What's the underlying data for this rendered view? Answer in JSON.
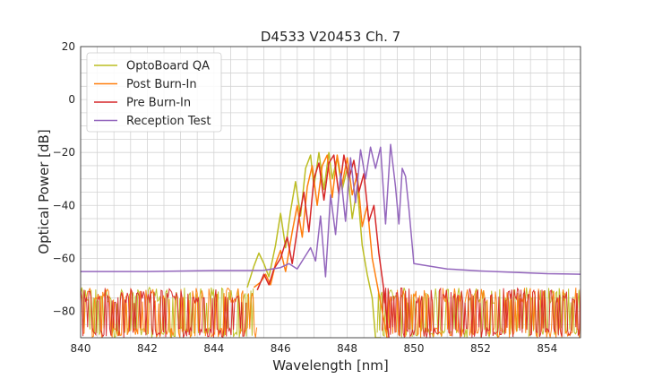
{
  "chart_data": {
    "type": "line",
    "title": "D4533 V20453 Ch. 7",
    "xlabel": "Wavelength [nm]",
    "ylabel": "Optical Power [dB]",
    "xlim": [
      840,
      855
    ],
    "ylim": [
      -90,
      20
    ],
    "xticks": [
      840,
      842,
      844,
      846,
      848,
      850,
      852,
      854
    ],
    "yticks": [
      20,
      0,
      -20,
      -40,
      -60,
      -80
    ],
    "xtick_labels": [
      "840",
      "842",
      "844",
      "846",
      "848",
      "850",
      "852",
      "854"
    ],
    "ytick_labels": [
      "20",
      "0",
      "−20",
      "−40",
      "−60",
      "−80"
    ],
    "grid": true,
    "legend_position": "top-left",
    "noise_floor": {
      "top": -71,
      "bottom": -90
    },
    "series": [
      {
        "name": "OptoBoard QA",
        "color": "#bcbd22",
        "x": [
          845.0,
          845.2,
          845.35,
          845.5,
          845.65,
          845.85,
          846.0,
          846.15,
          846.3,
          846.45,
          846.6,
          846.75,
          846.9,
          847.0,
          847.15,
          847.3,
          847.45,
          847.55,
          847.7,
          847.85,
          848.0,
          848.15,
          848.3,
          848.45,
          848.6,
          848.75,
          848.85,
          849.0
        ],
        "y": [
          -71,
          -63,
          -58,
          -62,
          -67,
          -55,
          -43,
          -56,
          -42,
          -31,
          -44,
          -26,
          -21,
          -33,
          -20,
          -34,
          -20,
          -30,
          -22,
          -34,
          -26,
          -45,
          -33,
          -55,
          -66,
          -75,
          -90,
          -90
        ]
      },
      {
        "name": "Post Burn-In",
        "color": "#ff7f0e",
        "x": [
          845.2,
          845.4,
          845.55,
          845.7,
          845.85,
          846.0,
          846.15,
          846.35,
          846.5,
          846.65,
          846.8,
          846.95,
          847.1,
          847.25,
          847.4,
          847.55,
          847.7,
          847.85,
          848.0,
          848.15,
          848.3,
          848.45,
          848.6,
          848.75,
          848.9,
          849.05,
          849.2
        ],
        "y": [
          -71,
          -69,
          -66,
          -70,
          -62,
          -57,
          -65,
          -50,
          -40,
          -52,
          -33,
          -25,
          -40,
          -25,
          -21,
          -37,
          -21,
          -32,
          -22,
          -36,
          -28,
          -48,
          -40,
          -60,
          -70,
          -80,
          -90
        ]
      },
      {
        "name": "Pre Burn-In",
        "color": "#d62728",
        "x": [
          845.3,
          845.5,
          845.65,
          845.8,
          846.0,
          846.2,
          846.35,
          846.55,
          846.7,
          846.85,
          847.0,
          847.15,
          847.3,
          847.45,
          847.6,
          847.75,
          847.9,
          848.05,
          848.2,
          848.35,
          848.5,
          848.65,
          848.8,
          848.95,
          849.1,
          849.25
        ],
        "y": [
          -72,
          -66,
          -70,
          -64,
          -60,
          -52,
          -62,
          -45,
          -35,
          -50,
          -30,
          -24,
          -38,
          -24,
          -21,
          -36,
          -21,
          -30,
          -23,
          -35,
          -28,
          -46,
          -40,
          -58,
          -72,
          -90
        ]
      },
      {
        "name": "Reception Test",
        "color": "#9467bd",
        "x": [
          840.0,
          842.0,
          844.0,
          845.0,
          845.5,
          846.0,
          846.25,
          846.5,
          846.7,
          846.9,
          847.05,
          847.2,
          847.35,
          847.5,
          847.65,
          847.8,
          847.95,
          848.1,
          848.25,
          848.4,
          848.55,
          848.7,
          848.85,
          849.0,
          849.15,
          849.3,
          849.45,
          849.55,
          849.65,
          849.75,
          849.85,
          850.0,
          851.0,
          852.0,
          853.0,
          854.0,
          855.0
        ],
        "y": [
          -65,
          -65,
          -64.6,
          -64.6,
          -64.5,
          -63.5,
          -62,
          -64,
          -60,
          -56,
          -61,
          -44,
          -67,
          -36,
          -51,
          -28,
          -46,
          -22,
          -39,
          -19,
          -30,
          -18,
          -26,
          -18,
          -47,
          -17,
          -33,
          -47,
          -26,
          -29,
          -41,
          -62,
          -64,
          -64.8,
          -65.3,
          -65.8,
          -66
        ]
      }
    ]
  }
}
